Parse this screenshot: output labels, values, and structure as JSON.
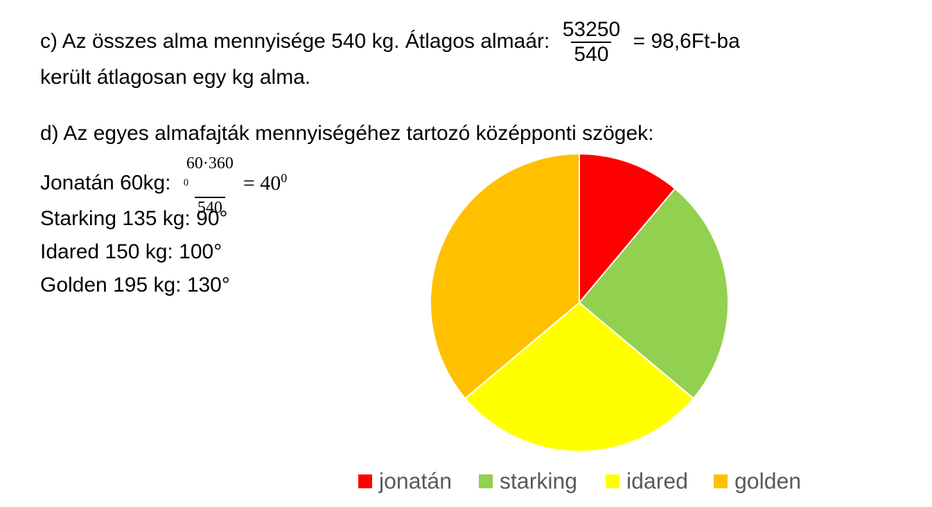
{
  "part_c": {
    "line1_text": "c) Az összes alma mennyisége 540 kg. Átlagos almaár:",
    "fraction_numerator": "53250",
    "fraction_denominator": "540",
    "line1_result": "= 98,6Ft-ba",
    "line2": "került átlagosan egy kg alma."
  },
  "part_d": {
    "heading": "d) Az egyes almafajták mennyiségéhez tartozó középponti szögek:",
    "jonatan_label": "Jonatán 60kg:",
    "jonatan_numerator": "60·360",
    "jonatan_numerator_sup": "0",
    "jonatan_denominator": "540",
    "jonatan_result": "= 40",
    "jonatan_result_sup": "0",
    "lines": [
      "Starking 135 kg: 90°",
      "Idared 150 kg: 100°",
      "Golden 195 kg: 130°"
    ]
  },
  "chart_data": {
    "type": "pie",
    "categories": [
      "jonatán",
      "starking",
      "idared",
      "golden"
    ],
    "values": [
      60,
      135,
      150,
      195
    ],
    "colors": [
      "#ff0000",
      "#92d050",
      "#ffff00",
      "#ffc000"
    ],
    "legend": "bottom"
  }
}
